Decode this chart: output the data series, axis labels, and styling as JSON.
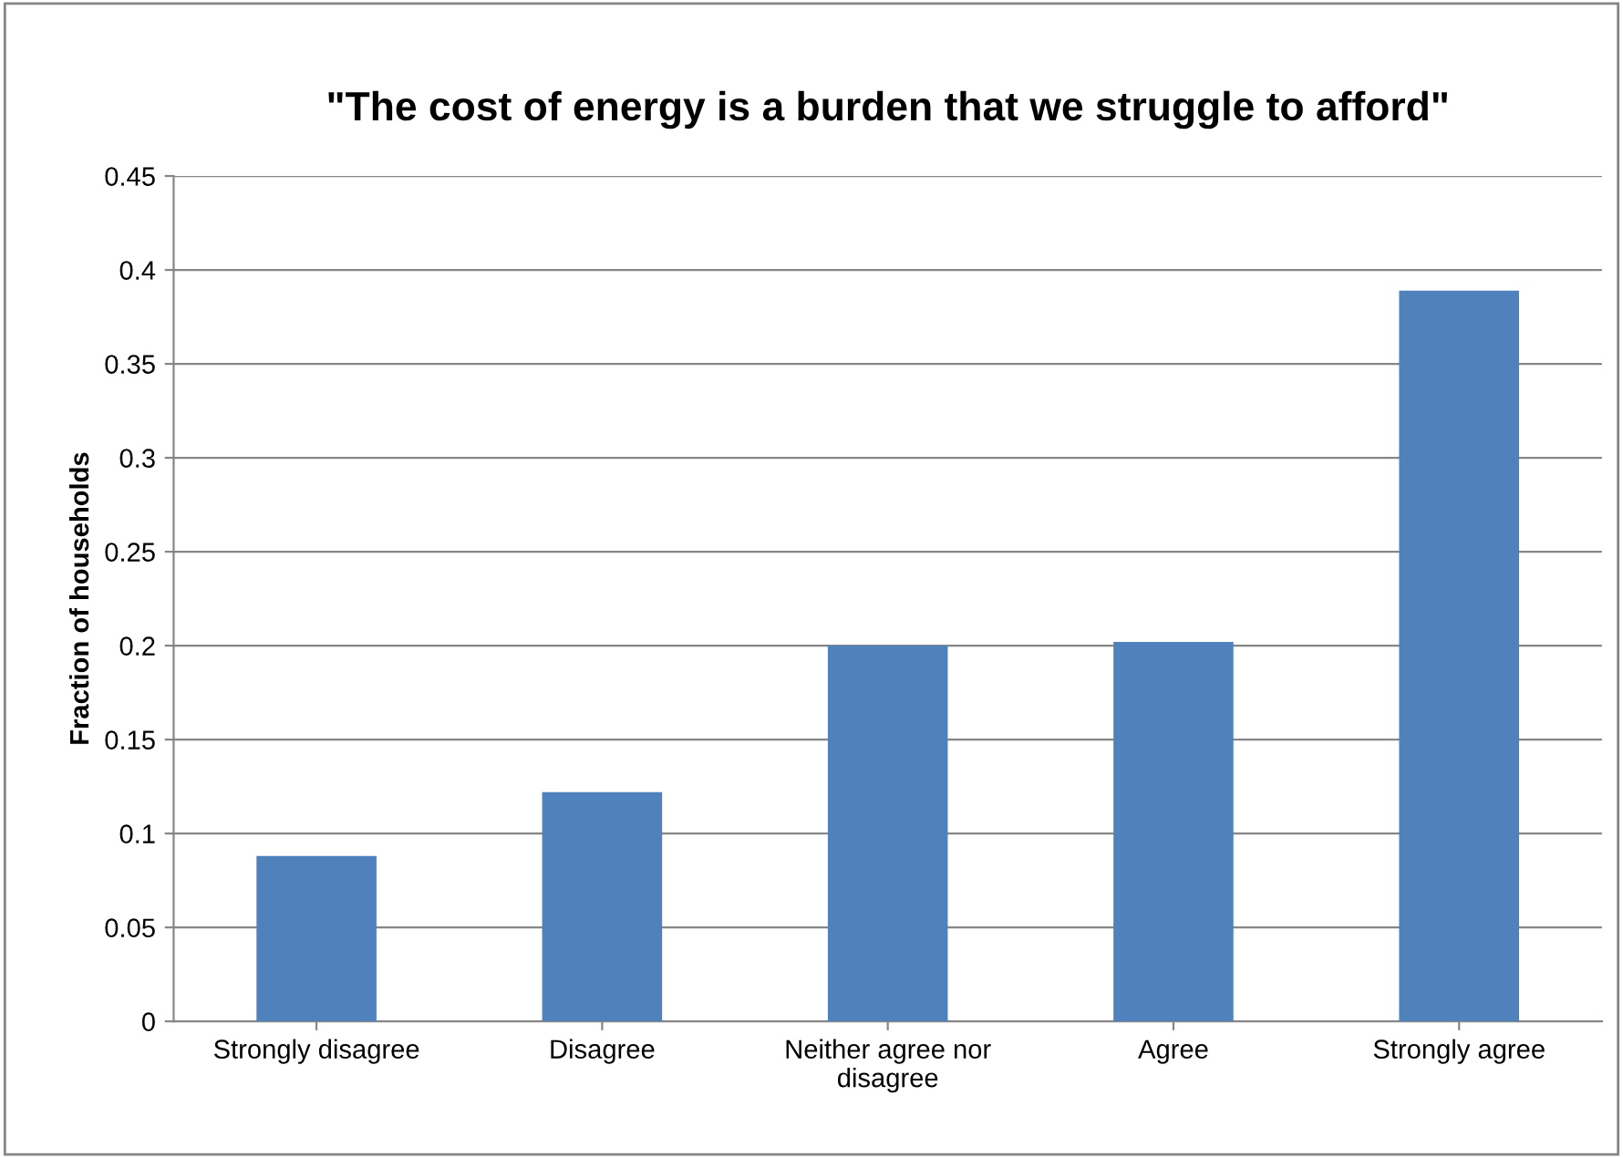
{
  "chart_data": {
    "type": "bar",
    "title": "\"The cost of energy is a burden that we struggle to afford\"",
    "ylabel": "Fraction of households",
    "categories": [
      "Strongly disagree",
      "Disagree",
      "Neither agree nor\ndisagree",
      "Agree",
      "Strongly agree"
    ],
    "values": [
      0.088,
      0.122,
      0.2,
      0.202,
      0.389
    ],
    "color": "#4f81bd",
    "ylim": [
      0,
      0.45
    ],
    "yticks": [
      0,
      0.05,
      0.1,
      0.15,
      0.2,
      0.25,
      0.3,
      0.35,
      0.4,
      0.45
    ],
    "grid": "y",
    "legend": false
  }
}
